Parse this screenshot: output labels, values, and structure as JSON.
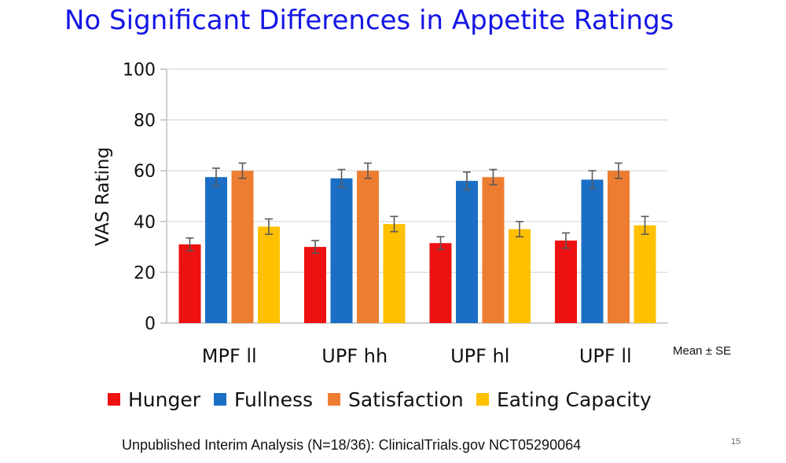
{
  "title": "No Significant Differences in Appetite Ratings",
  "note": "Mean ± SE",
  "footer": "Unpublished Interim Analysis (N=18/36): ClinicalTrials.gov NCT05290064",
  "page_number": "15",
  "colors": {
    "Hunger": "#ee1111",
    "Fullness": "#1a6fc4",
    "Satisfaction": "#ed7d31",
    "Eating Capacity": "#ffc000",
    "grid": "#d9d9d9",
    "title": "#1515e6"
  },
  "chart_data": {
    "type": "bar",
    "title": "",
    "xlabel": "",
    "ylabel": "VAS Rating",
    "ylim": [
      0,
      100
    ],
    "yticks": [
      0,
      20,
      40,
      60,
      80,
      100
    ],
    "grid": true,
    "legend_position": "bottom",
    "categories": [
      "MPF ll",
      "UPF hh",
      "UPF hl",
      "UPF ll"
    ],
    "series": [
      {
        "name": "Hunger",
        "values": [
          31,
          30,
          31.5,
          32.5
        ],
        "se": [
          2.5,
          2.5,
          2.5,
          3
        ]
      },
      {
        "name": "Fullness",
        "values": [
          57.5,
          57,
          56,
          56.5
        ],
        "se": [
          3.5,
          3.5,
          3.5,
          3.5
        ]
      },
      {
        "name": "Satisfaction",
        "values": [
          60,
          60,
          57.5,
          60
        ],
        "se": [
          3,
          3,
          3,
          3
        ]
      },
      {
        "name": "Eating Capacity",
        "values": [
          38,
          39,
          37,
          38.5
        ],
        "se": [
          3,
          3,
          3,
          3.5
        ]
      }
    ]
  }
}
